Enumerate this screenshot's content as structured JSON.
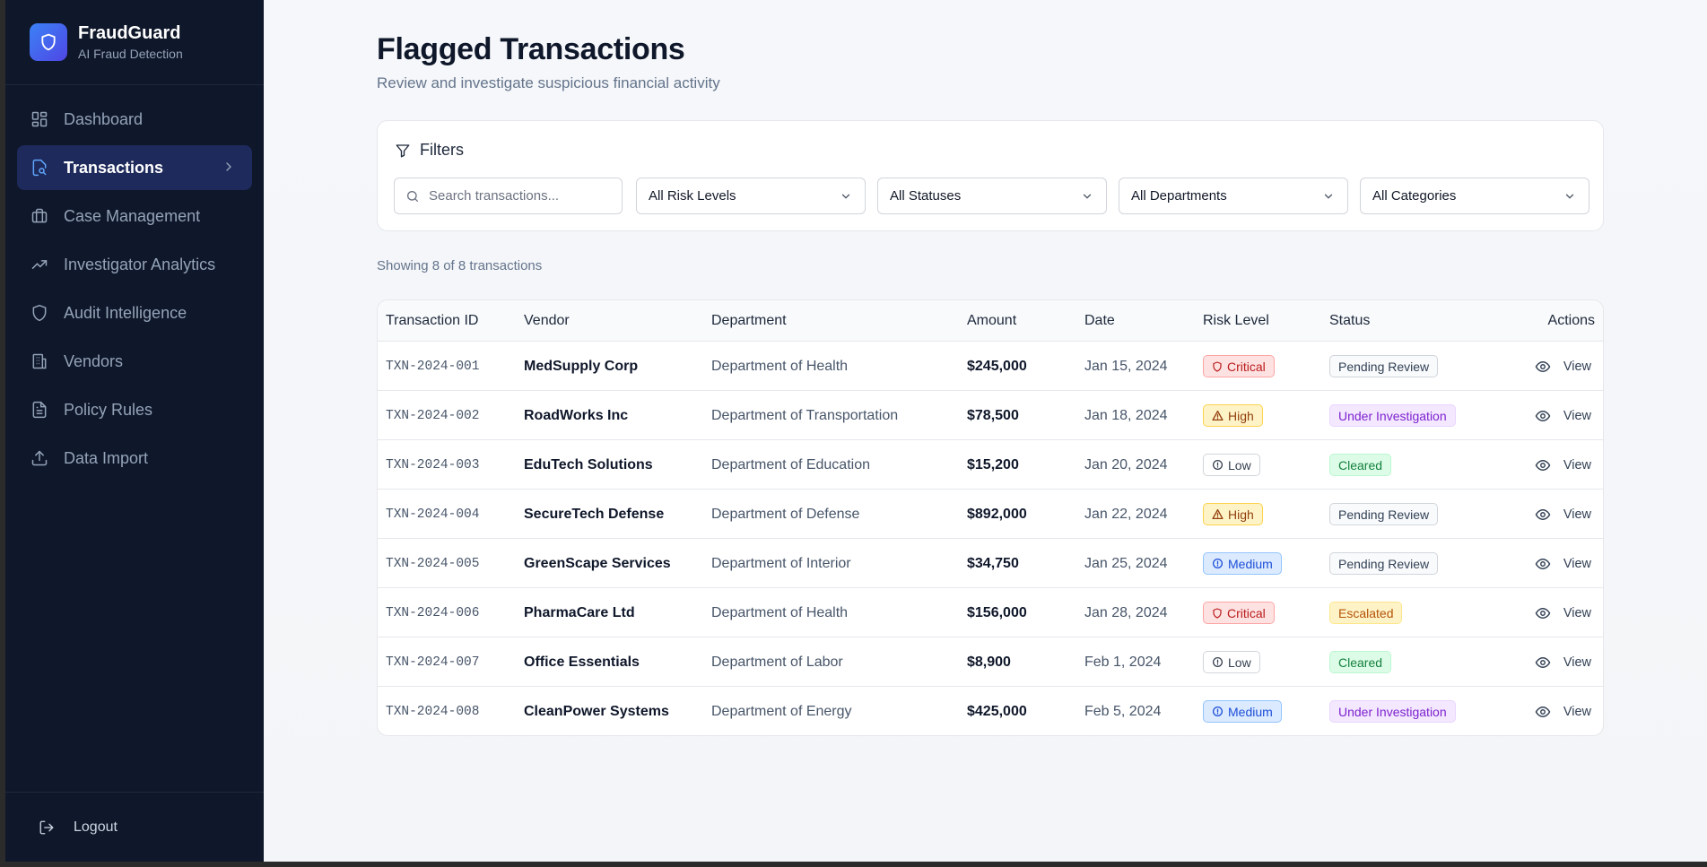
{
  "brand": {
    "name": "FraudGuard",
    "subtitle": "AI Fraud Detection"
  },
  "sidebar": {
    "items": [
      {
        "label": "Dashboard",
        "icon": "dashboard-icon",
        "active": false
      },
      {
        "label": "Transactions",
        "icon": "file-search-icon",
        "active": true
      },
      {
        "label": "Case Management",
        "icon": "briefcase-icon",
        "active": false
      },
      {
        "label": "Investigator Analytics",
        "icon": "trending-up-icon",
        "active": false
      },
      {
        "label": "Audit Intelligence",
        "icon": "shield-icon",
        "active": false
      },
      {
        "label": "Vendors",
        "icon": "building-icon",
        "active": false
      },
      {
        "label": "Policy Rules",
        "icon": "document-icon",
        "active": false
      },
      {
        "label": "Data Import",
        "icon": "upload-icon",
        "active": false
      }
    ],
    "logout_label": "Logout"
  },
  "header": {
    "title": "Flagged Transactions",
    "subtitle": "Review and investigate suspicious financial activity"
  },
  "filters": {
    "title": "Filters",
    "search_placeholder": "Search transactions...",
    "risk_level": "All Risk Levels",
    "status": "All Statuses",
    "department": "All Departments",
    "category": "All Categories"
  },
  "results": {
    "count_text": "Showing 8 of 8 transactions"
  },
  "table": {
    "columns": {
      "id": "Transaction ID",
      "vendor": "Vendor",
      "department": "Department",
      "amount": "Amount",
      "date": "Date",
      "risk": "Risk Level",
      "status": "Status",
      "actions": "Actions"
    },
    "view_label": "View",
    "rows": [
      {
        "id": "TXN-2024-001",
        "vendor": "MedSupply Corp",
        "department": "Department of Health",
        "amount": "$245,000",
        "date": "Jan 15, 2024",
        "risk": "Critical",
        "status": "Pending Review"
      },
      {
        "id": "TXN-2024-002",
        "vendor": "RoadWorks Inc",
        "department": "Department of Transportation",
        "amount": "$78,500",
        "date": "Jan 18, 2024",
        "risk": "High",
        "status": "Under Investigation"
      },
      {
        "id": "TXN-2024-003",
        "vendor": "EduTech Solutions",
        "department": "Department of Education",
        "amount": "$15,200",
        "date": "Jan 20, 2024",
        "risk": "Low",
        "status": "Cleared"
      },
      {
        "id": "TXN-2024-004",
        "vendor": "SecureTech Defense",
        "department": "Department of Defense",
        "amount": "$892,000",
        "date": "Jan 22, 2024",
        "risk": "High",
        "status": "Pending Review"
      },
      {
        "id": "TXN-2024-005",
        "vendor": "GreenScape Services",
        "department": "Department of Interior",
        "amount": "$34,750",
        "date": "Jan 25, 2024",
        "risk": "Medium",
        "status": "Pending Review"
      },
      {
        "id": "TXN-2024-006",
        "vendor": "PharmaCare Ltd",
        "department": "Department of Health",
        "amount": "$156,000",
        "date": "Jan 28, 2024",
        "risk": "Critical",
        "status": "Escalated"
      },
      {
        "id": "TXN-2024-007",
        "vendor": "Office Essentials",
        "department": "Department of Labor",
        "amount": "$8,900",
        "date": "Feb 1, 2024",
        "risk": "Low",
        "status": "Cleared"
      },
      {
        "id": "TXN-2024-008",
        "vendor": "CleanPower Systems",
        "department": "Department of Energy",
        "amount": "$425,000",
        "date": "Feb 5, 2024",
        "risk": "Medium",
        "status": "Under Investigation"
      }
    ]
  },
  "colors": {
    "sidebar_bg": "#0f172a",
    "active_nav_bg": "#1e2a5c",
    "brand_accent": "#4f46e5"
  }
}
